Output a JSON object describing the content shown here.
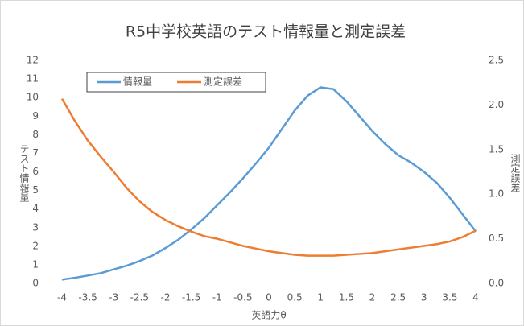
{
  "chart_data": {
    "type": "line",
    "title": "R5中学校英語のテスト情報量と測定誤差",
    "x_label": "英語力θ",
    "y_label": "テスト情報量",
    "y2_label": "測定誤差",
    "x": [
      -4,
      -3.75,
      -3.5,
      -3.25,
      -3,
      -2.75,
      -2.5,
      -2.25,
      -2,
      -1.75,
      -1.5,
      -1.25,
      -1,
      -0.75,
      -0.5,
      -0.25,
      0,
      0.25,
      0.5,
      0.75,
      1,
      1.25,
      1.5,
      1.75,
      2,
      2.25,
      2.5,
      2.75,
      3,
      3.25,
      3.5,
      3.75,
      4
    ],
    "series": [
      {
        "name": "情報量",
        "color": "#5b9bd5",
        "values": [
          0.2,
          0.3,
          0.42,
          0.55,
          0.75,
          0.95,
          1.2,
          1.5,
          1.9,
          2.35,
          2.9,
          3.5,
          4.2,
          4.9,
          5.65,
          6.45,
          7.3,
          8.3,
          9.3,
          10.1,
          10.55,
          10.45,
          9.8,
          9.0,
          8.2,
          7.5,
          6.9,
          6.5,
          6.0,
          5.4,
          4.6,
          3.7,
          2.8
        ]
      },
      {
        "name": "測定誤差",
        "color": "#ed7d31",
        "axis": "y2",
        "values": [
          2.07,
          1.82,
          1.6,
          1.42,
          1.25,
          1.07,
          0.92,
          0.8,
          0.71,
          0.64,
          0.58,
          0.53,
          0.5,
          0.46,
          0.42,
          0.39,
          0.36,
          0.34,
          0.32,
          0.31,
          0.31,
          0.31,
          0.32,
          0.33,
          0.34,
          0.36,
          0.38,
          0.4,
          0.42,
          0.44,
          0.47,
          0.52,
          0.59
        ]
      }
    ],
    "xlim": [
      -4,
      4
    ],
    "xticks": [
      -4,
      -3.5,
      -3,
      -2.5,
      -2,
      -1.5,
      -1,
      -0.5,
      0,
      0.5,
      1,
      1.5,
      2,
      2.5,
      3,
      3.5,
      4
    ],
    "ylim": [
      0,
      12
    ],
    "yticks": [
      0,
      1,
      2,
      3,
      4,
      5,
      6,
      7,
      8,
      9,
      10,
      11,
      12
    ],
    "y2lim": [
      0,
      2.5
    ],
    "y2ticks": [
      {
        "value": 0,
        "label": "0.0"
      },
      {
        "value": 0.5,
        "label": "0.5"
      },
      {
        "value": 1,
        "label": "1.0"
      },
      {
        "value": 1.5,
        "label": "1.5"
      },
      {
        "value": 2,
        "label": "2.0"
      },
      {
        "value": 2.5,
        "label": "2.5"
      }
    ],
    "grid": false,
    "legend": "top-left"
  }
}
